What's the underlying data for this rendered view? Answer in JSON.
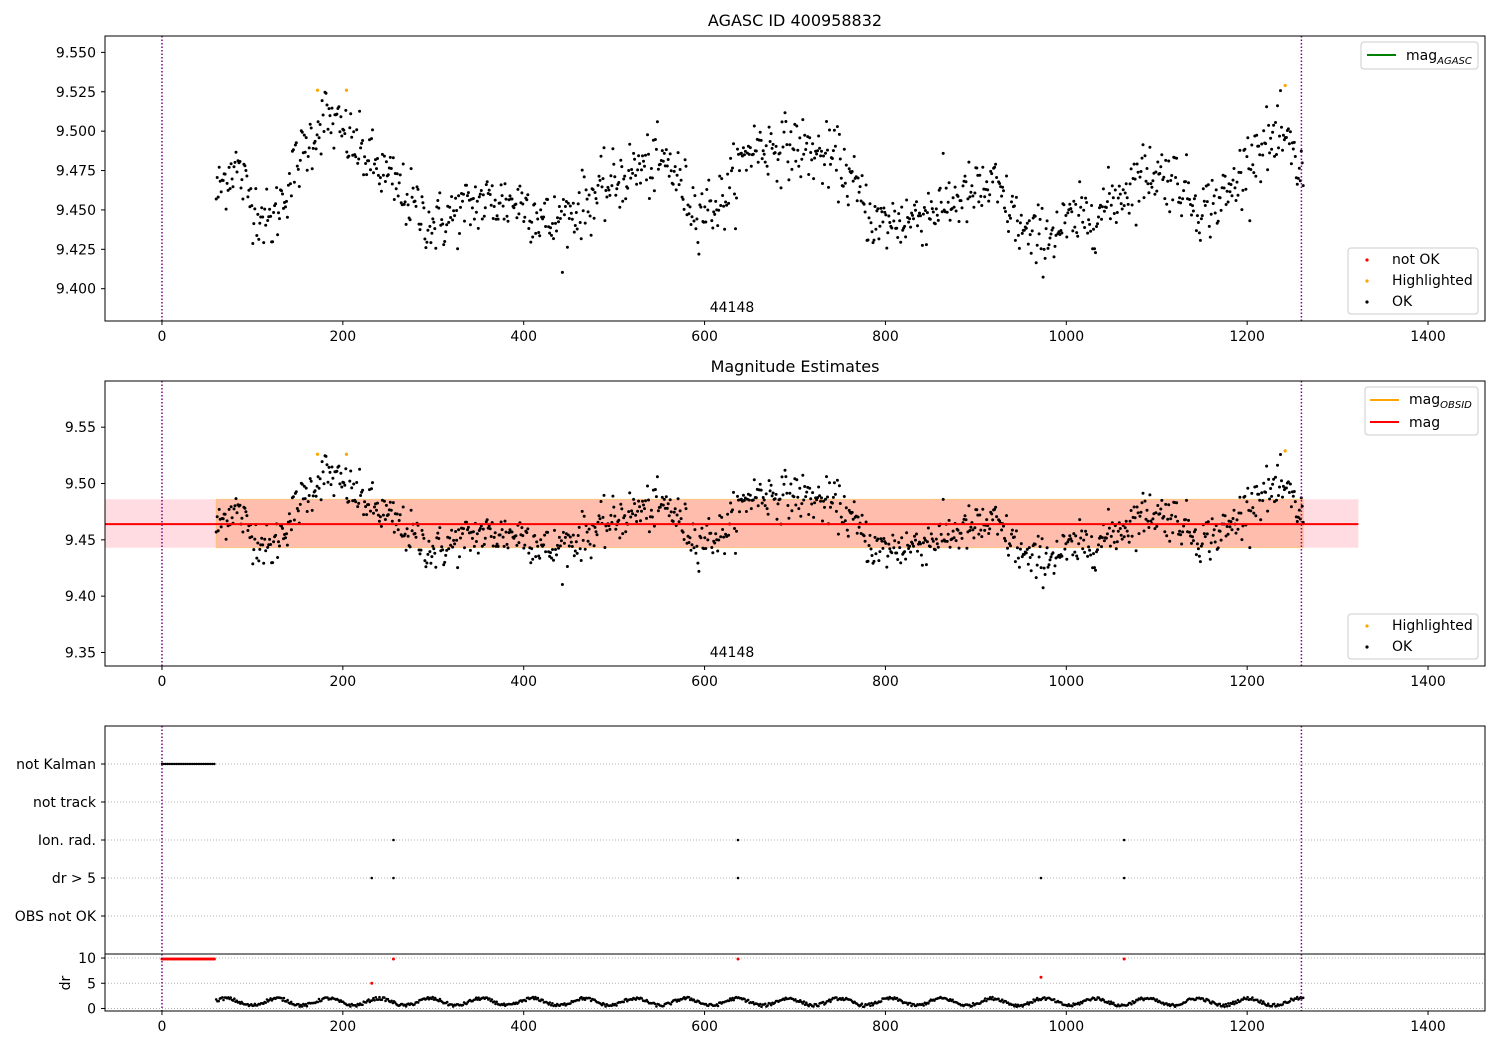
{
  "chart_data": [
    {
      "id": "agasc",
      "type": "scatter",
      "title": "AGASC ID 400958832",
      "annotation": "44148",
      "xlim": [
        -63,
        1463
      ],
      "ylim": [
        9.3795,
        9.5604
      ],
      "xticks": [
        0,
        200,
        400,
        600,
        800,
        1000,
        1200,
        1400
      ],
      "yticks": [
        "9.400",
        "9.425",
        "9.450",
        "9.475",
        "9.500",
        "9.525",
        "9.550"
      ],
      "vlines": [
        0,
        1260
      ],
      "line_legend": [
        {
          "label": "mag",
          "sub": "AGASC",
          "color": "#008000"
        }
      ],
      "point_legend": [
        {
          "label": "not OK",
          "color": "#ff0000"
        },
        {
          "label": "Highlighted",
          "color": "#ffa500"
        },
        {
          "label": "OK",
          "color": "#000000"
        }
      ],
      "series": [
        {
          "name": "Highlighted",
          "points": [
            [
              172,
              9.526
            ],
            [
              204,
              9.526
            ],
            [
              1242,
              9.529
            ]
          ]
        },
        {
          "name": "OK",
          "trend": [
            [
              60,
              9.46
            ],
            [
              80,
              9.48
            ],
            [
              100,
              9.455
            ],
            [
              120,
              9.44
            ],
            [
              150,
              9.48
            ],
            [
              180,
              9.51
            ],
            [
              215,
              9.49
            ],
            [
              250,
              9.47
            ],
            [
              300,
              9.44
            ],
            [
              350,
              9.455
            ],
            [
              400,
              9.455
            ],
            [
              430,
              9.44
            ],
            [
              470,
              9.455
            ],
            [
              520,
              9.475
            ],
            [
              560,
              9.48
            ],
            [
              590,
              9.45
            ],
            [
              620,
              9.455
            ],
            [
              650,
              9.49
            ],
            [
              700,
              9.49
            ],
            [
              750,
              9.48
            ],
            [
              790,
              9.44
            ],
            [
              830,
              9.445
            ],
            [
              870,
              9.455
            ],
            [
              920,
              9.465
            ],
            [
              960,
              9.43
            ],
            [
              1000,
              9.44
            ],
            [
              1040,
              9.45
            ],
            [
              1090,
              9.475
            ],
            [
              1120,
              9.47
            ],
            [
              1150,
              9.45
            ],
            [
              1180,
              9.46
            ],
            [
              1210,
              9.49
            ],
            [
              1240,
              9.495
            ],
            [
              1262,
              9.47
            ]
          ],
          "count": 1100,
          "scatter": 0.018
        }
      ]
    },
    {
      "id": "obsid",
      "type": "scatter",
      "title": "Magnitude Estimates",
      "annotation": "44148",
      "xlim": [
        -63,
        1463
      ],
      "ylim": [
        9.338,
        9.591
      ],
      "xticks": [
        0,
        200,
        400,
        600,
        800,
        1000,
        1200,
        1400
      ],
      "yticks": [
        "9.35",
        "9.40",
        "9.45",
        "9.50",
        "9.55"
      ],
      "vlines": [
        0,
        1260
      ],
      "mag_line": 9.464,
      "band_pink": [
        -63,
        1323,
        9.443,
        9.486
      ],
      "band_orange": [
        60,
        1262,
        9.443,
        9.486
      ],
      "line_legend": [
        {
          "label": "mag",
          "sub": "OBSID",
          "color": "#ffa500"
        },
        {
          "label": "mag",
          "sub": "",
          "color": "#ff0000"
        }
      ],
      "point_legend": [
        {
          "label": "Highlighted",
          "color": "#ffa500"
        },
        {
          "label": "OK",
          "color": "#000000"
        }
      ],
      "series": [
        {
          "name": "Highlighted",
          "points": [
            [
              172,
              9.526
            ],
            [
              204,
              9.526
            ],
            [
              1242,
              9.529
            ]
          ]
        }
      ]
    },
    {
      "id": "flags",
      "type": "scatter",
      "xlim": [
        -63,
        1463
      ],
      "categories": [
        "not Kalman",
        "not track",
        "Ion. rad.",
        "dr > 5",
        "OBS not OK"
      ],
      "vlines": [
        0,
        1260
      ],
      "flag_points": {
        "not Kalman": {
          "range": [
            0,
            58
          ],
          "step": 2
        },
        "Ion. rad.": [
          256,
          637,
          1064
        ],
        "dr > 5": [
          232,
          256,
          637,
          972,
          1064
        ]
      }
    },
    {
      "id": "dr",
      "type": "scatter",
      "xlim": [
        -63,
        1463
      ],
      "ylim": [
        -0.5,
        10.8
      ],
      "ylabel": "dr",
      "yticks": [
        "0",
        "5",
        "10"
      ],
      "xticks": [
        0,
        200,
        400,
        600,
        800,
        1000,
        1200,
        1400
      ],
      "vlines": [
        0,
        1260
      ],
      "red_points": [
        [
          232,
          5.0
        ],
        [
          256,
          9.8
        ],
        [
          637,
          9.8
        ],
        [
          972,
          6.2
        ],
        [
          1064,
          9.8
        ]
      ],
      "red_row": {
        "range": [
          0,
          58
        ],
        "y": 9.8
      }
    }
  ]
}
